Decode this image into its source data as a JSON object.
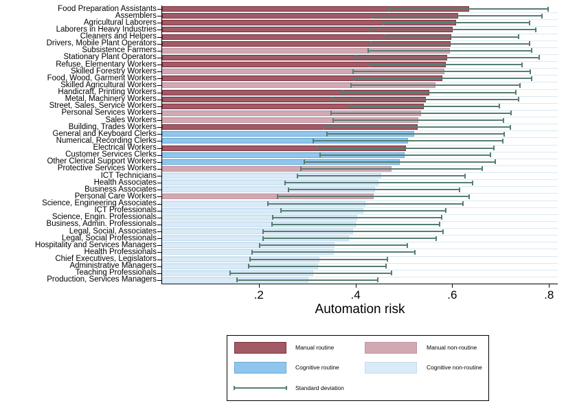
{
  "chart_data": {
    "type": "bar",
    "orientation": "horizontal",
    "title": "",
    "xlabel": "Automation risk",
    "xlim": [
      0,
      0.82
    ],
    "grid": "faint horizontal row separators",
    "legend_position": "bottom-center boxed",
    "x_ticks": [
      {
        "value": 0.2,
        "label": ".2"
      },
      {
        "value": 0.4,
        "label": ".4"
      },
      {
        "value": 0.6,
        "label": ".6"
      },
      {
        "value": 0.8,
        "label": ".8"
      }
    ],
    "rows": [
      {
        "label": "Food Preparation Assistants",
        "group": "manual_routine",
        "value": 0.635,
        "sd_low": 0.467,
        "sd_high": 0.8
      },
      {
        "label": "Assemblers",
        "group": "manual_routine",
        "value": 0.612,
        "sd_low": 0.432,
        "sd_high": 0.787
      },
      {
        "label": "Agricultural Laborers",
        "group": "manual_routine",
        "value": 0.608,
        "sd_low": 0.456,
        "sd_high": 0.762
      },
      {
        "label": "Laborers in Heavy Industries",
        "group": "manual_routine",
        "value": 0.601,
        "sd_low": 0.429,
        "sd_high": 0.774
      },
      {
        "label": "Cleaners and Helpers",
        "group": "manual_routine",
        "value": 0.598,
        "sd_low": 0.46,
        "sd_high": 0.738
      },
      {
        "label": "Drivers, Mobile Plant Operators",
        "group": "manual_routine",
        "value": 0.596,
        "sd_low": 0.43,
        "sd_high": 0.762
      },
      {
        "label": "Subsistence Farmers",
        "group": "manual_nonroutine",
        "value": 0.595,
        "sd_low": 0.425,
        "sd_high": 0.765
      },
      {
        "label": "Stationary Plant Operators",
        "group": "manual_routine",
        "value": 0.59,
        "sd_low": 0.4,
        "sd_high": 0.781
      },
      {
        "label": "Refuse, Elementary Workers",
        "group": "manual_routine",
        "value": 0.587,
        "sd_low": 0.428,
        "sd_high": 0.746
      },
      {
        "label": "Skilled Forestry Workers",
        "group": "manual_nonroutine",
        "value": 0.584,
        "sd_low": 0.394,
        "sd_high": 0.763
      },
      {
        "label": "Food, Wood, Garment Workers",
        "group": "manual_routine",
        "value": 0.58,
        "sd_low": 0.395,
        "sd_high": 0.765
      },
      {
        "label": "Skilled Agricultural Workers",
        "group": "manual_nonroutine",
        "value": 0.565,
        "sd_low": 0.389,
        "sd_high": 0.741
      },
      {
        "label": "Handicraft, Printing Workers",
        "group": "manual_routine",
        "value": 0.552,
        "sd_low": 0.372,
        "sd_high": 0.733
      },
      {
        "label": "Metal, Machinery Workers",
        "group": "manual_routine",
        "value": 0.545,
        "sd_low": 0.351,
        "sd_high": 0.739
      },
      {
        "label": "Street, Sales, Service Workers",
        "group": "manual_routine",
        "value": 0.541,
        "sd_low": 0.387,
        "sd_high": 0.699
      },
      {
        "label": "Personal Services Workers",
        "group": "manual_nonroutine",
        "value": 0.536,
        "sd_low": 0.348,
        "sd_high": 0.723
      },
      {
        "label": "Sales Workers",
        "group": "manual_nonroutine",
        "value": 0.53,
        "sd_low": 0.352,
        "sd_high": 0.708
      },
      {
        "label": "Building, Trades Workers",
        "group": "manual_routine",
        "value": 0.528,
        "sd_low": 0.333,
        "sd_high": 0.722
      },
      {
        "label": "General and Keyboard Clerks",
        "group": "cognitive_routine",
        "value": 0.522,
        "sd_low": 0.339,
        "sd_high": 0.709
      },
      {
        "label": "Numerical, Recording Clerks",
        "group": "cognitive_routine",
        "value": 0.508,
        "sd_low": 0.311,
        "sd_high": 0.706
      },
      {
        "label": "Electrical Workers",
        "group": "manual_routine",
        "value": 0.504,
        "sd_low": 0.319,
        "sd_high": 0.688
      },
      {
        "label": "Customer Services Clerks",
        "group": "cognitive_routine",
        "value": 0.501,
        "sd_low": 0.325,
        "sd_high": 0.68
      },
      {
        "label": "Other Clerical Support Workers",
        "group": "cognitive_routine",
        "value": 0.491,
        "sd_low": 0.293,
        "sd_high": 0.691
      },
      {
        "label": "Protective Services Workers",
        "group": "manual_nonroutine",
        "value": 0.475,
        "sd_low": 0.285,
        "sd_high": 0.663
      },
      {
        "label": "ICT Technicians",
        "group": "cognitive_nonroutine",
        "value": 0.453,
        "sd_low": 0.279,
        "sd_high": 0.628
      },
      {
        "label": "Health Associates",
        "group": "cognitive_nonroutine",
        "value": 0.448,
        "sd_low": 0.253,
        "sd_high": 0.644
      },
      {
        "label": "Business Associates",
        "group": "cognitive_nonroutine",
        "value": 0.44,
        "sd_low": 0.26,
        "sd_high": 0.616
      },
      {
        "label": "Personal Care Workers",
        "group": "manual_nonroutine",
        "value": 0.437,
        "sd_low": 0.237,
        "sd_high": 0.637
      },
      {
        "label": "Science, Engineering Associates",
        "group": "cognitive_nonroutine",
        "value": 0.421,
        "sd_low": 0.217,
        "sd_high": 0.623
      },
      {
        "label": "ICT Professionals",
        "group": "cognitive_nonroutine",
        "value": 0.416,
        "sd_low": 0.245,
        "sd_high": 0.588
      },
      {
        "label": "Science, Engin. Professionals",
        "group": "cognitive_nonroutine",
        "value": 0.403,
        "sd_low": 0.227,
        "sd_high": 0.579
      },
      {
        "label": "Business, Admin. Professionals",
        "group": "cognitive_nonroutine",
        "value": 0.4,
        "sd_low": 0.226,
        "sd_high": 0.575
      },
      {
        "label": "Legal, Social, Associates",
        "group": "cognitive_nonroutine",
        "value": 0.395,
        "sd_low": 0.208,
        "sd_high": 0.583
      },
      {
        "label": "Legal, Social Professionals",
        "group": "cognitive_nonroutine",
        "value": 0.387,
        "sd_low": 0.208,
        "sd_high": 0.568
      },
      {
        "label": "Hospitality and Services Managers",
        "group": "cognitive_nonroutine",
        "value": 0.357,
        "sd_low": 0.2,
        "sd_high": 0.509
      },
      {
        "label": "Health Professionals",
        "group": "cognitive_nonroutine",
        "value": 0.355,
        "sd_low": 0.185,
        "sd_high": 0.524
      },
      {
        "label": "Chief Executives, Legislators",
        "group": "cognitive_nonroutine",
        "value": 0.325,
        "sd_low": 0.18,
        "sd_high": 0.468
      },
      {
        "label": "Administrative Managers",
        "group": "cognitive_nonroutine",
        "value": 0.323,
        "sd_low": 0.178,
        "sd_high": 0.464
      },
      {
        "label": "Teaching Professionals",
        "group": "cognitive_nonroutine",
        "value": 0.312,
        "sd_low": 0.139,
        "sd_high": 0.476
      },
      {
        "label": "Production, Services Managers",
        "group": "cognitive_nonroutine",
        "value": 0.302,
        "sd_low": 0.154,
        "sd_high": 0.448
      }
    ]
  },
  "legend": {
    "items": [
      {
        "label": "Manual routine",
        "swatch": "manual_routine",
        "kind": "box"
      },
      {
        "label": "Manual non-routine",
        "swatch": "manual_nonroutine",
        "kind": "box"
      },
      {
        "label": "Cognitive routine",
        "swatch": "cognitive_routine",
        "kind": "box"
      },
      {
        "label": "Cognitive non-routine",
        "swatch": "cognitive_nonroutine",
        "kind": "box"
      },
      {
        "label": "Standard deviation",
        "swatch": "sd",
        "kind": "line"
      }
    ]
  },
  "colors": {
    "manual_routine": {
      "fill": "#a25a64",
      "border": "#7e3140"
    },
    "manual_nonroutine": {
      "fill": "#d2a9b2",
      "border": "#c293a0"
    },
    "cognitive_routine": {
      "fill": "#8fc6ee",
      "border": "#6fa8d0"
    },
    "cognitive_nonroutine": {
      "fill": "#d9eaf8",
      "border": "#c4dbee"
    },
    "sd": {
      "fill": "#567d70",
      "border": "#567d70"
    },
    "gridline": "#d8e9f3",
    "axis": "#000000"
  }
}
